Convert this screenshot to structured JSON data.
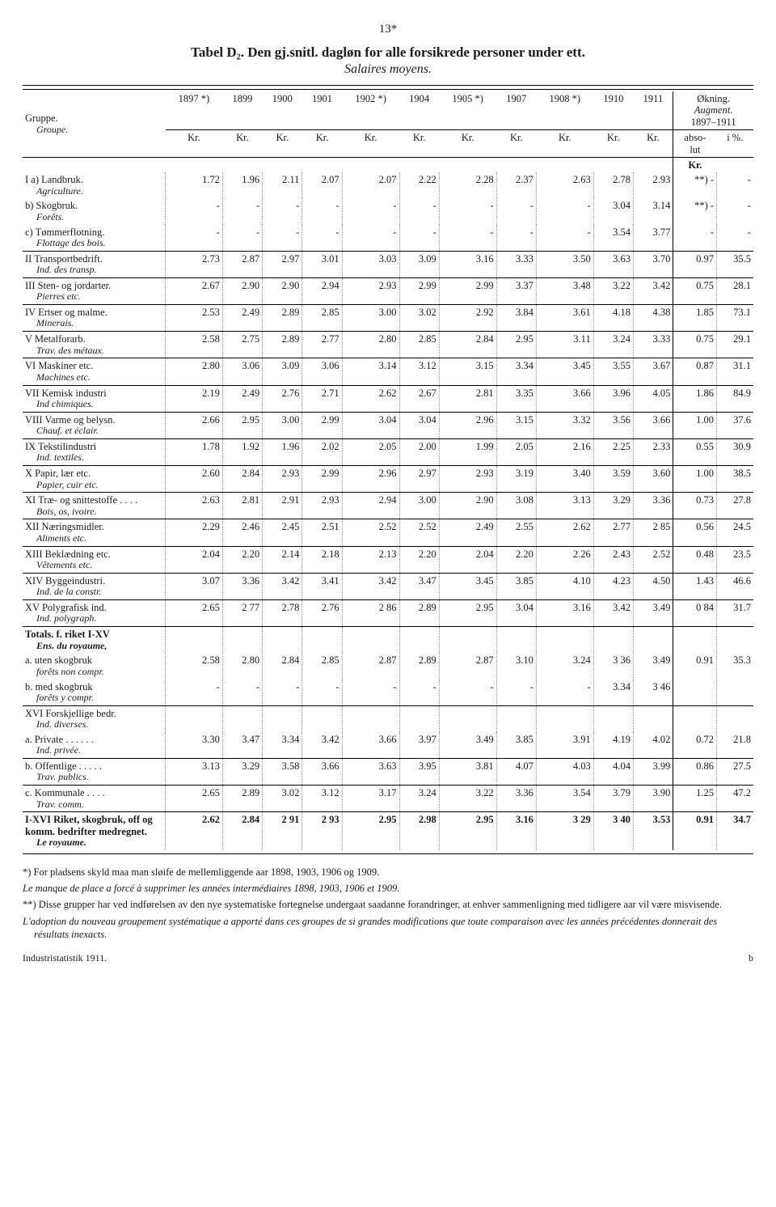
{
  "page_number": "13*",
  "title": "Tabel D₂. Den gj.snitl. dagløn for alle forsikrede personer under ett.",
  "subtitle": "Salaires moyens.",
  "header": {
    "group_label": "Gruppe.",
    "group_sub": "Groupe.",
    "years": [
      "1897 *)",
      "1899",
      "1900",
      "1901",
      "1902 *)",
      "1904",
      "1905 *)",
      "1907",
      "1908 *)",
      "1910",
      "1911"
    ],
    "aug_title": "Økning.",
    "aug_sub": "Augment.",
    "aug_range": "1897–1911",
    "aug_abs": "abso-\nlut",
    "aug_pct": "i %.",
    "unit": "Kr."
  },
  "rows": [
    {
      "label": "I a) Landbruk.",
      "sub": "Agriculture.",
      "v": [
        "1.72",
        "1.96",
        "2.11",
        "2.07",
        "2.07",
        "2.22",
        "2.28",
        "2.37",
        "2.63",
        "2.78",
        "2.93"
      ],
      "abs": "**) -",
      "pct": "-"
    },
    {
      "label": "b) Skogbruk.",
      "sub": "Forêts.",
      "v": [
        "-",
        "-",
        "-",
        "-",
        "-",
        "-",
        "-",
        "-",
        "-",
        "3.04",
        "3.14"
      ],
      "abs": "**) -",
      "pct": "-"
    },
    {
      "label": "c) Tømmerflotning.",
      "sub": "Flottage des bois.",
      "v": [
        "-",
        "-",
        "-",
        "-",
        "-",
        "-",
        "-",
        "-",
        "-",
        "3.54",
        "3.77"
      ],
      "abs": "-",
      "pct": "-"
    },
    {
      "sep": true,
      "label": "II Transportbedrift.",
      "sub": "Ind. des transp.",
      "v": [
        "2.73",
        "2.87",
        "2.97",
        "3.01",
        "3.03",
        "3.09",
        "3.16",
        "3.33",
        "3.50",
        "3.63",
        "3.70"
      ],
      "abs": "0.97",
      "pct": "35.5"
    },
    {
      "sep": true,
      "label": "III Sten- og jordarter.",
      "sub": "Pierres etc.",
      "v": [
        "2.67",
        "2.90",
        "2.90",
        "2.94",
        "2.93",
        "2.99",
        "2.99",
        "3.37",
        "3.48",
        "3.22",
        "3.42"
      ],
      "abs": "0.75",
      "pct": "28.1"
    },
    {
      "sep": true,
      "label": "IV Ertser og malme.",
      "sub": "Minerais.",
      "v": [
        "2.53",
        "2.49",
        "2.89",
        "2.85",
        "3.00",
        "3.02",
        "2.92",
        "3.84",
        "3.61",
        "4.18",
        "4.38"
      ],
      "abs": "1.85",
      "pct": "73.1"
    },
    {
      "sep": true,
      "label": "V Metalforarb.",
      "sub": "Trav. des métaux.",
      "v": [
        "2.58",
        "2.75",
        "2.89",
        "2.77",
        "2.80",
        "2.85",
        "2.84",
        "2.95",
        "3.11",
        "3.24",
        "3.33"
      ],
      "abs": "0.75",
      "pct": "29.1"
    },
    {
      "sep": true,
      "label": "VI Maskiner etc.",
      "sub": "Machines etc.",
      "v": [
        "2.80",
        "3.06",
        "3.09",
        "3.06",
        "3.14",
        "3.12",
        "3.15",
        "3.34",
        "3.45",
        "3.55",
        "3.67"
      ],
      "abs": "0.87",
      "pct": "31.1"
    },
    {
      "sep": true,
      "label": "VII Kemisk industri",
      "sub": "Ind chimiques.",
      "v": [
        "2.19",
        "2.49",
        "2.76",
        "2.71",
        "2.62",
        "2.67",
        "2.81",
        "3.35",
        "3.66",
        "3.96",
        "4.05"
      ],
      "abs": "1.86",
      "pct": "84.9"
    },
    {
      "sep": true,
      "label": "VIII Varme og belysn.",
      "sub": "Chauf. et éclair.",
      "v": [
        "2.66",
        "2.95",
        "3.00",
        "2.99",
        "3.04",
        "3.04",
        "2.96",
        "3.15",
        "3.32",
        "3.56",
        "3.66"
      ],
      "abs": "1.00",
      "pct": "37.6"
    },
    {
      "sep": true,
      "label": "IX Tekstilindustri",
      "sub": "Ind. textiles.",
      "v": [
        "1.78",
        "1.92",
        "1.96",
        "2.02",
        "2.05",
        "2.00",
        "1.99",
        "2.05",
        "2.16",
        "2.25",
        "2.33"
      ],
      "abs": "0.55",
      "pct": "30.9"
    },
    {
      "sep": true,
      "label": "X Papir, lær etc.",
      "sub": "Papier, cuir etc.",
      "v": [
        "2.60",
        "2.84",
        "2.93",
        "2.99",
        "2.96",
        "2.97",
        "2.93",
        "3.19",
        "3.40",
        "3.59",
        "3.60"
      ],
      "abs": "1.00",
      "pct": "38.5"
    },
    {
      "sep": true,
      "label": "XI Træ- og snittestoffe . . . .",
      "sub": "Bois, os, ivoire.",
      "v": [
        "2.63",
        "2.81",
        "2.91",
        "2.93",
        "2.94",
        "3.00",
        "2.90",
        "3.08",
        "3.13",
        "3.29",
        "3.36"
      ],
      "abs": "0.73",
      "pct": "27.8"
    },
    {
      "sep": true,
      "label": "XII Næringsmidler.",
      "sub": "Aliments etc.",
      "v": [
        "2.29",
        "2.46",
        "2.45",
        "2.51",
        "2.52",
        "2.52",
        "2.49",
        "2.55",
        "2.62",
        "2.77",
        "2 85"
      ],
      "abs": "0.56",
      "pct": "24.5"
    },
    {
      "sep": true,
      "label": "XIII Beklædning etc.",
      "sub": "Vêtements etc.",
      "v": [
        "2.04",
        "2.20",
        "2.14",
        "2.18",
        "2.13",
        "2.20",
        "2.04",
        "2.20",
        "2.26",
        "2.43",
        "2.52"
      ],
      "abs": "0.48",
      "pct": "23.5"
    },
    {
      "sep": true,
      "label": "XIV Byggeindustri.",
      "sub": "Ind. de la constr.",
      "v": [
        "3.07",
        "3.36",
        "3.42",
        "3.41",
        "3.42",
        "3.47",
        "3.45",
        "3.85",
        "4.10",
        "4.23",
        "4.50"
      ],
      "abs": "1.43",
      "pct": "46.6"
    },
    {
      "sep": true,
      "label": "XV Polygrafisk ind.",
      "sub": "Ind. polygraph.",
      "v": [
        "2.65",
        "2 77",
        "2.78",
        "2.76",
        "2 86",
        "2.89",
        "2.95",
        "3.04",
        "3.16",
        "3.42",
        "3.49"
      ],
      "abs": "0 84",
      "pct": "31.7"
    },
    {
      "sep": true,
      "bold": true,
      "label": "Totals. f. riket I-XV",
      "sub": "Ens. du royaume,",
      "v": [
        "",
        "",
        "",
        "",
        "",
        "",
        "",
        "",
        "",
        "",
        ""
      ],
      "abs": "",
      "pct": ""
    },
    {
      "label": "a. uten skogbruk",
      "sub": "forêts non compr.",
      "v": [
        "2.58",
        "2.80",
        "2.84",
        "2.85",
        "2.87",
        "2.89",
        "2.87",
        "3.10",
        "3.24",
        "3 36",
        "3.49"
      ],
      "abs": "0.91",
      "pct": "35.3"
    },
    {
      "label": "b. med skogbruk",
      "sub": "forêts y compr.",
      "v": [
        "-",
        "-",
        "-",
        "-",
        "-",
        "-",
        "-",
        "-",
        "-",
        "3.34",
        "3 46"
      ],
      "abs": "",
      "pct": ""
    },
    {
      "sep": true,
      "label": "XVI Forskjellige bedr.",
      "sub": "Ind. diverses.",
      "v": [
        "",
        "",
        "",
        "",
        "",
        "",
        "",
        "",
        "",
        "",
        ""
      ],
      "abs": "",
      "pct": ""
    },
    {
      "label": "a. Private . . . . . .",
      "sub": "Ind. privée.",
      "v": [
        "3.30",
        "3.47",
        "3.34",
        "3.42",
        "3.66",
        "3.97",
        "3.49",
        "3.85",
        "3.91",
        "4.19",
        "4.02"
      ],
      "abs": "0.72",
      "pct": "21.8"
    },
    {
      "sep": true,
      "label": "b. Offentlige . . . . .",
      "sub": "Trav. publics.",
      "v": [
        "3.13",
        "3.29",
        "3.58",
        "3.66",
        "3.63",
        "3.95",
        "3.81",
        "4.07",
        "4.03",
        "4.04",
        "3.99"
      ],
      "abs": "0.86",
      "pct": "27.5"
    },
    {
      "sep": true,
      "label": "c. Kommunale . . . .",
      "sub": "Trav. comm.",
      "v": [
        "2.65",
        "2.89",
        "3.02",
        "3.12",
        "3.17",
        "3.24",
        "3.22",
        "3.36",
        "3.54",
        "3.79",
        "3.90"
      ],
      "abs": "1.25",
      "pct": "47.2"
    },
    {
      "sep": true,
      "bold": true,
      "label": "I-XVI Riket, skogbruk, off og komm. bedrifter medregnet.",
      "sub": "Le royaume.",
      "v": [
        "2.62",
        "2.84",
        "2 91",
        "2 93",
        "2.95",
        "2.98",
        "2.95",
        "3.16",
        "3 29",
        "3 40",
        "3.53"
      ],
      "abs": "0.91",
      "pct": "34.7"
    }
  ],
  "footnotes": {
    "a": "*) For pladsens skyld maa man sløife de mellemliggende aar 1898, 1903, 1906 og 1909.",
    "a_it": "Le manque de place a forcé à supprimer les années intermédiaires 1898, 1903, 1906 et 1909.",
    "b": "**) Disse grupper har ved indførelsen av den nye systematiske fortegnelse undergaat saadanne forandringer, at enhver sammenligning med tidligere aar vil være misvisende.",
    "b_it": "L'adoption du nouveau groupement systématique a apporté dans ces groupes de si grandes modifications que toute comparaison avec les années précédentes donnerait des résultats inexacts."
  },
  "foot_left": "Industristatistik 1911.",
  "foot_right": "b"
}
